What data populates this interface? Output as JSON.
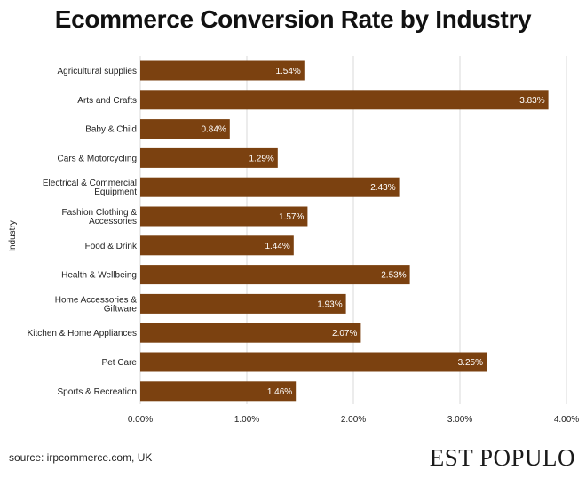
{
  "chart_data": {
    "type": "bar",
    "orientation": "horizontal",
    "title": "Ecommerce Conversion Rate by Industry",
    "ylabel": "Industry",
    "xlabel": "",
    "categories": [
      [
        "Agricultural supplies"
      ],
      [
        "Arts and Crafts"
      ],
      [
        "Baby & Child"
      ],
      [
        "Cars & Motorcycling"
      ],
      [
        "Electrical & Commercial",
        "Equipment"
      ],
      [
        "Fashion Clothing &",
        "Accessories"
      ],
      [
        "Food & Drink"
      ],
      [
        "Health & Wellbeing"
      ],
      [
        "Home Accessories &",
        "Giftware"
      ],
      [
        "Kitchen & Home Appliances"
      ],
      [
        "Pet Care"
      ],
      [
        "Sports & Recreation"
      ]
    ],
    "values": [
      1.54,
      3.83,
      0.84,
      1.29,
      2.43,
      1.57,
      1.44,
      2.53,
      1.93,
      2.07,
      3.25,
      1.46
    ],
    "value_labels": [
      "1.54%",
      "3.83%",
      "0.84%",
      "1.29%",
      "2.43%",
      "1.57%",
      "1.44%",
      "2.53%",
      "1.93%",
      "2.07%",
      "3.25%",
      "1.46%"
    ],
    "xticks": [
      0,
      1,
      2,
      3,
      4
    ],
    "xtick_labels": [
      "0.00%",
      "1.00%",
      "2.00%",
      "3.00%",
      "4.00%"
    ],
    "xlim": [
      0,
      4
    ],
    "grid": true,
    "bar_color": "#7b4110",
    "grid_color": "#d9d9d9"
  },
  "footer": {
    "source": "source: irpcommerce.com, UK",
    "logo": "EST POPULO"
  }
}
